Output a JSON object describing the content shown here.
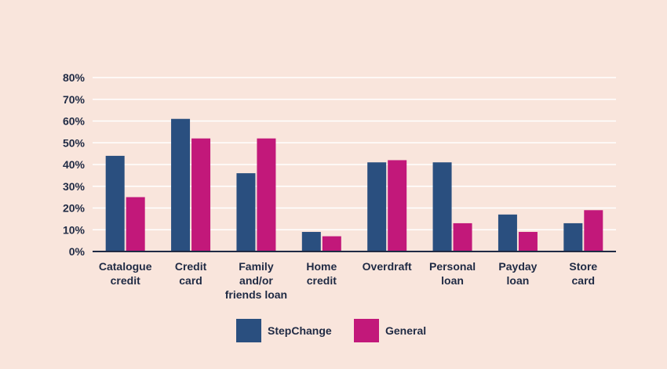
{
  "chart_data": {
    "type": "bar",
    "title": "",
    "xlabel": "",
    "ylabel": "",
    "categories": [
      [
        "Catalogue",
        "credit"
      ],
      [
        "Credit",
        "card"
      ],
      [
        "Family",
        "and/or",
        "friends loan"
      ],
      [
        "Home",
        "credit"
      ],
      [
        "Overdraft"
      ],
      [
        "Personal",
        "loan"
      ],
      [
        "Payday",
        "loan"
      ],
      [
        "Store",
        "card"
      ]
    ],
    "series": [
      {
        "name": "StepChange",
        "color": "#2a4f7f",
        "values": [
          44,
          61,
          36,
          9,
          41,
          41,
          17,
          13
        ]
      },
      {
        "name": "General",
        "color": "#c2187a",
        "values": [
          25,
          52,
          52,
          7,
          42,
          13,
          9,
          19
        ]
      }
    ],
    "ylim": [
      0,
      80
    ],
    "yticks": [
      0,
      10,
      20,
      30,
      40,
      50,
      60,
      70,
      80
    ],
    "ytick_labels": [
      "0%",
      "10%",
      "20%",
      "30%",
      "40%",
      "50%",
      "60%",
      "70%",
      "80%"
    ],
    "grid": true,
    "legend_position": "bottom-center"
  }
}
